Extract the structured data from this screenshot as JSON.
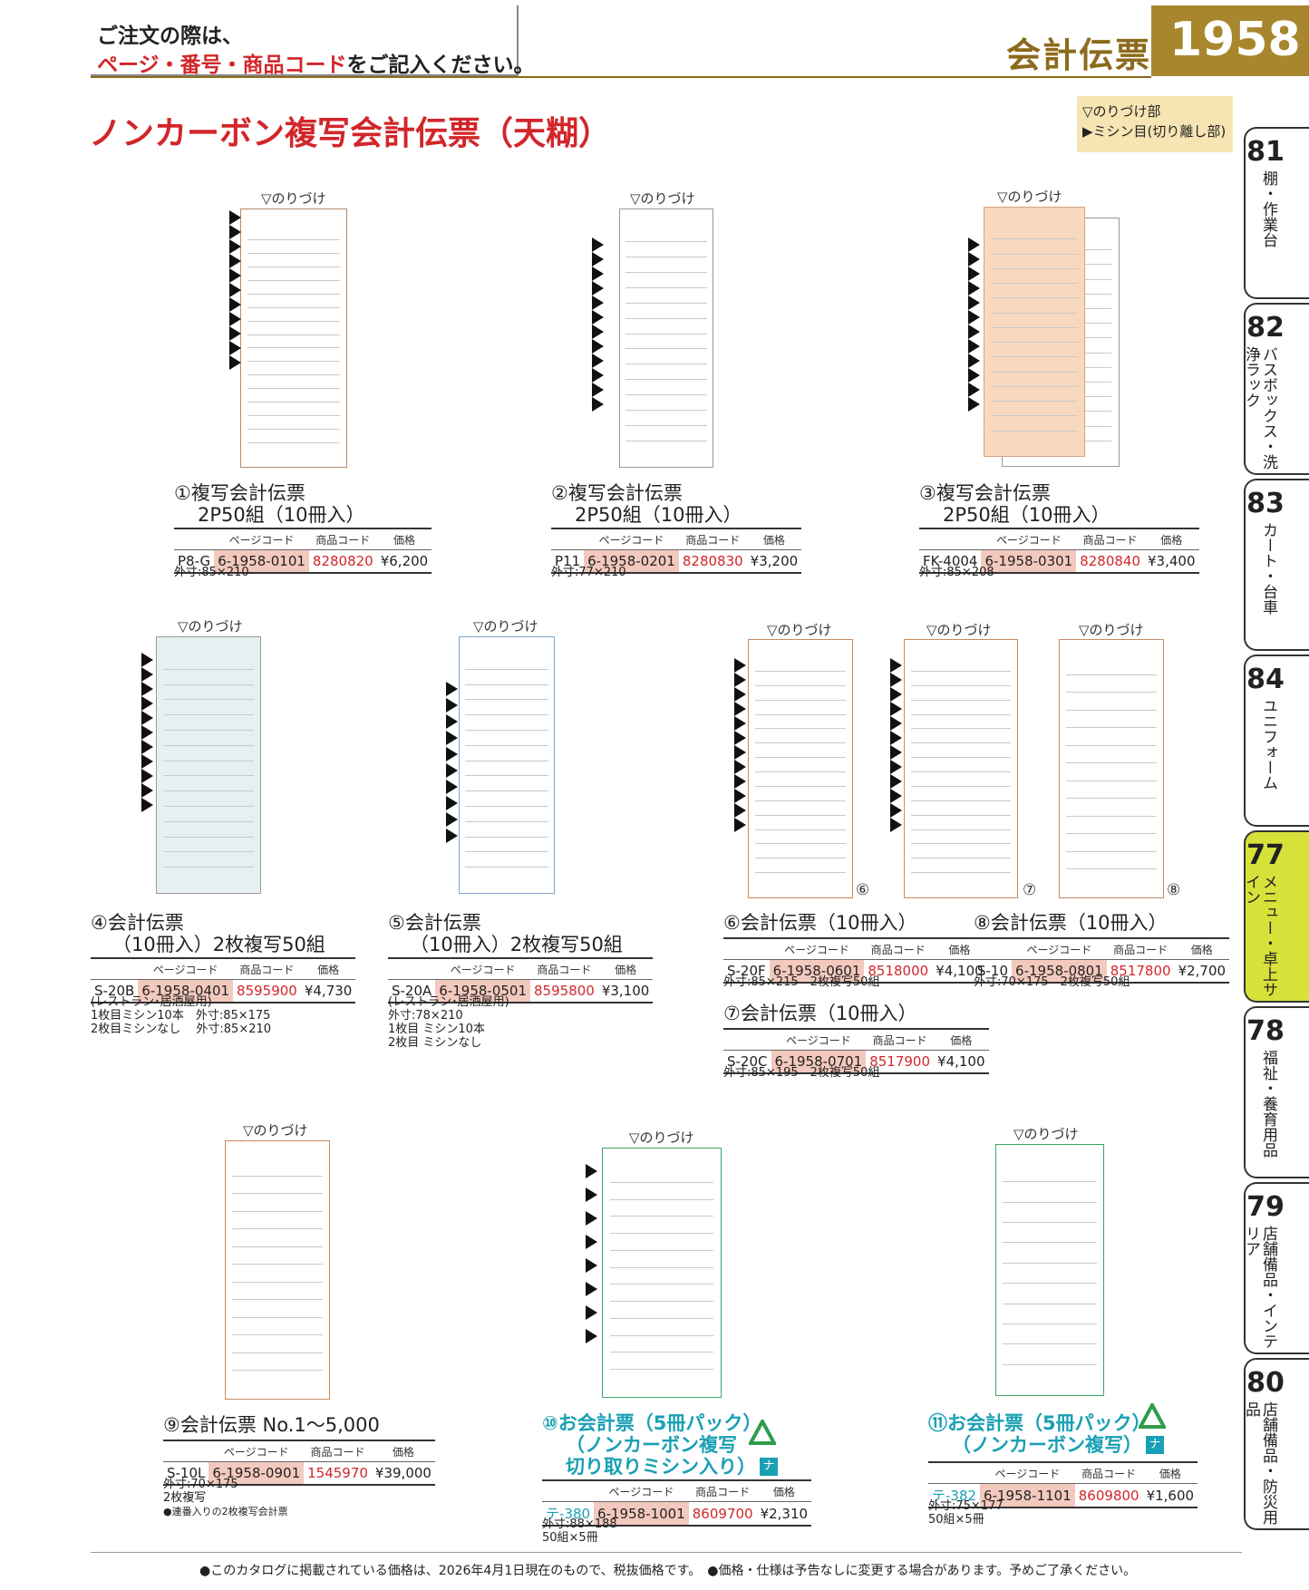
{
  "header": {
    "notice_line1": "ご注文の際は、",
    "notice_line2_red": "ページ・番号・商品コード",
    "notice_line2_rest": "をご記入ください。",
    "category": "会計伝票",
    "page_number": "1958"
  },
  "title": "ノンカーボン複写会計伝票（天糊）",
  "legend": {
    "line1": "▽のりづけ部",
    "line2": "▶ミシン目(切り離し部)"
  },
  "nori_label": "▽のりづけ",
  "table_headers": [
    "ページコード",
    "商品コード",
    "価格"
  ],
  "side_tabs": [
    {
      "num": "81",
      "label": "棚・作業台"
    },
    {
      "num": "82",
      "label": "バスボックス・洗浄ラック"
    },
    {
      "num": "83",
      "label": "カート・台車"
    },
    {
      "num": "84",
      "label": "ユニフォーム"
    },
    {
      "num": "77",
      "label": "メニュー・卓上サイン"
    },
    {
      "num": "78",
      "label": "福祉・養育用品"
    },
    {
      "num": "79",
      "label": "店舗備品・インテリア"
    },
    {
      "num": "80",
      "label": "店舗備品・防災用品"
    }
  ],
  "products": [
    {
      "name1": "①複写会計伝票",
      "name2": "2P50組（10冊入）",
      "model": "P8-G",
      "page_code": "6-1958-0101",
      "goods_code": "8280820",
      "price": "¥6,200",
      "notes": [
        "外寸:85×210"
      ]
    },
    {
      "name1": "②複写会計伝票",
      "name2": "2P50組（10冊入）",
      "model": "P11",
      "page_code": "6-1958-0201",
      "goods_code": "8280830",
      "price": "¥3,200",
      "notes": [
        "外寸:77×210"
      ]
    },
    {
      "name1": "③複写会計伝票",
      "name2": "2P50組（10冊入）",
      "model": "FK-4004",
      "page_code": "6-1958-0301",
      "goods_code": "8280840",
      "price": "¥3,400",
      "notes": [
        "外寸:85×208"
      ]
    },
    {
      "name1": "④会計伝票",
      "name2": "（10冊入）2枚複写50組",
      "model": "S-20B",
      "page_code": "6-1958-0401",
      "goods_code": "8595900",
      "price": "¥4,730",
      "notes": [
        "(レストラン･居酒屋用)",
        "1枚目ミシン10本　外寸:85×175",
        "2枚目ミシンなし　 外寸:85×210"
      ]
    },
    {
      "name1": "⑤会計伝票",
      "name2": "（10冊入）2枚複写50組",
      "model": "S-20A",
      "page_code": "6-1958-0501",
      "goods_code": "8595800",
      "price": "¥3,100",
      "notes": [
        "(レストラン･居酒屋用)",
        "外寸:78×210",
        "1枚目  ミシン10本",
        "2枚目  ミシンなし"
      ]
    },
    {
      "name1": "⑥会計伝票（10冊入）",
      "name2": "",
      "model": "S-20F",
      "page_code": "6-1958-0601",
      "goods_code": "8518000",
      "price": "¥4,100",
      "notes": [
        "外寸:85×215　2枚複写50組"
      ]
    },
    {
      "name1": "⑦会計伝票（10冊入）",
      "name2": "",
      "model": "S-20C",
      "page_code": "6-1958-0701",
      "goods_code": "8517900",
      "price": "¥4,100",
      "notes": [
        "外寸:85×195　2枚複写50組"
      ]
    },
    {
      "name1": "⑧会計伝票（10冊入）",
      "name2": "",
      "model": "S-10",
      "page_code": "6-1958-0801",
      "goods_code": "8517800",
      "price": "¥2,700",
      "notes": [
        "外寸:70×175　2枚複写50組"
      ]
    },
    {
      "name1": "⑨会計伝票 No.1〜5,000",
      "name2": "",
      "model": "S-10L",
      "page_code": "6-1958-0901",
      "goods_code": "1545970",
      "price": "¥39,000",
      "notes": [
        "外寸:70×175",
        "2枚複写",
        "●連番入りの2枚複写会計票"
      ]
    },
    {
      "name1": "⑩お会計票（5冊パック）",
      "name2": "（ノンカーボン複写",
      "name3": "切り取りミシン入り）",
      "model": "テ-380",
      "page_code": "6-1958-1001",
      "goods_code": "8609700",
      "price": "¥2,310",
      "notes": [
        "外寸:88×188",
        "50組×5冊"
      ]
    },
    {
      "name1": "⑪お会計票（5冊パック）",
      "name2": "（ノンカーボン複写）",
      "model": "テ-382",
      "page_code": "6-1958-1101",
      "goods_code": "8609800",
      "price": "¥1,600",
      "notes": [
        "外寸:75×177",
        "50組×5冊"
      ]
    }
  ],
  "circle_labels": {
    "six": "⑥",
    "seven": "⑦",
    "eight": "⑧"
  },
  "badge_na": "ナ",
  "footer": "●このカタログに掲載されている価格は、2026年4月1日現在のもので、税抜価格です。　●価格・仕様は予告なしに変更する場合があります。予めご了承ください。",
  "colors": {
    "red": "#d2262a",
    "gold": "#a7862d",
    "teal": "#1aa0b4",
    "tab_active": "#d7e13a"
  }
}
